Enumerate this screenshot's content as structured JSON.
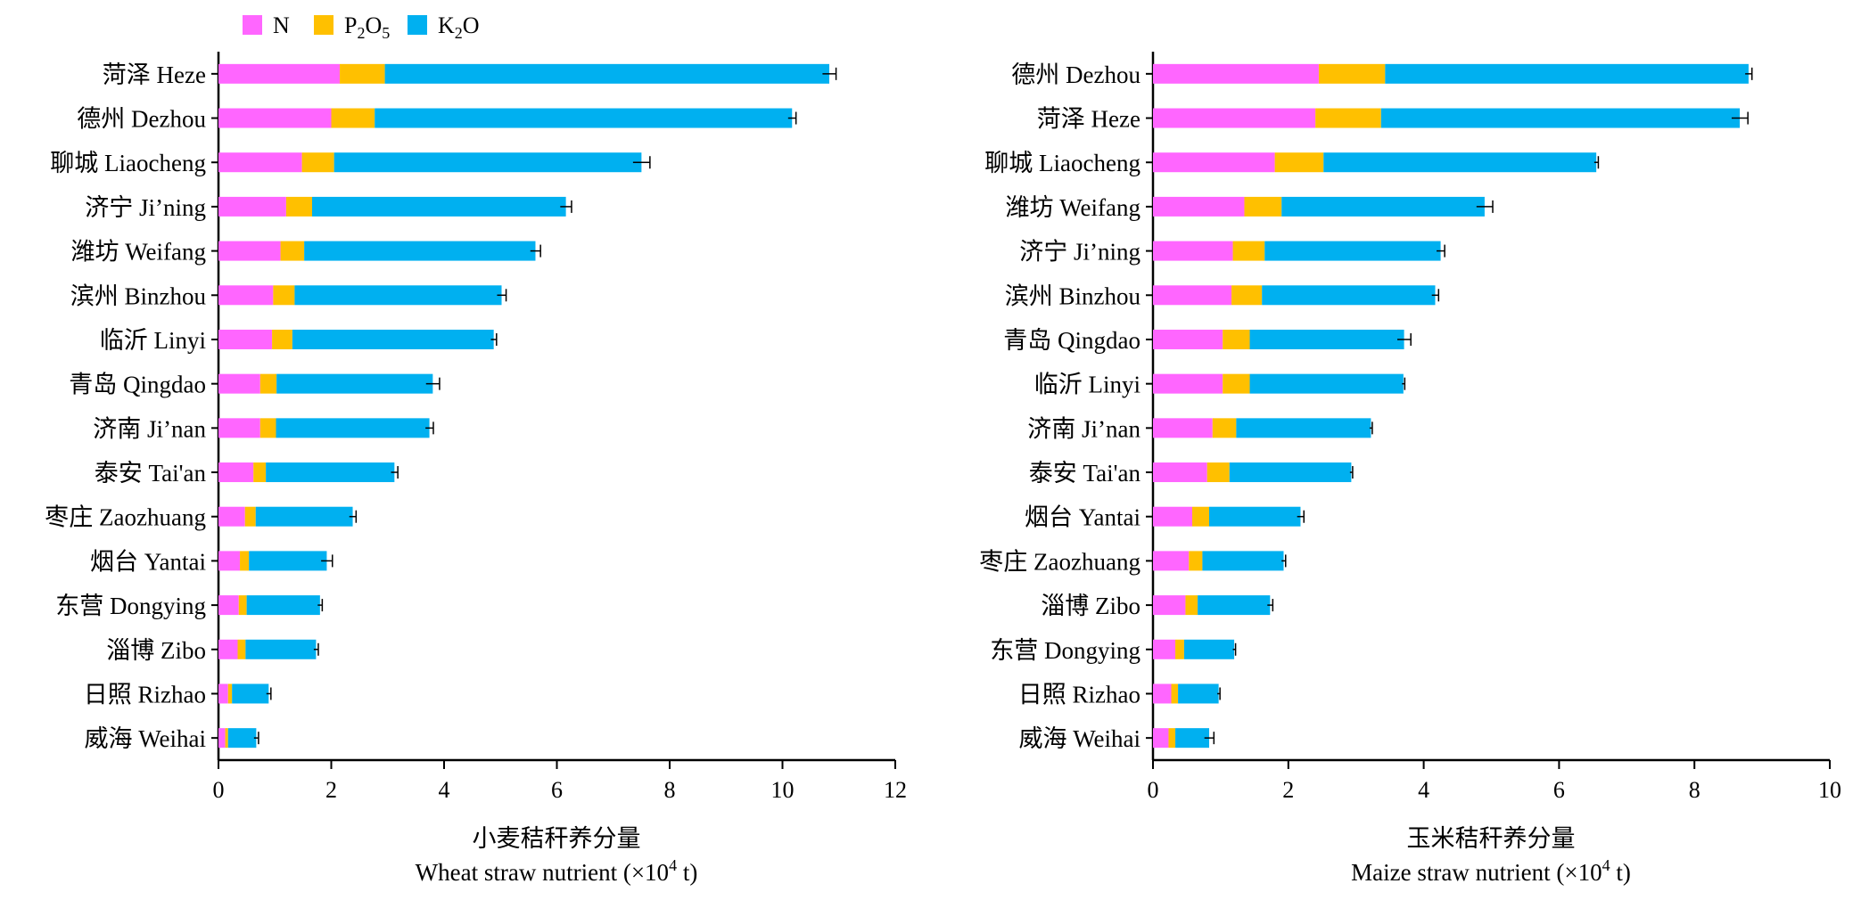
{
  "legend": {
    "items": [
      {
        "key": "N",
        "label": "N",
        "sub": "",
        "label2": "",
        "sub2": "",
        "color": "#ff66ff"
      },
      {
        "key": "P2O5",
        "label": "P",
        "sub": "2",
        "label2": "O",
        "sub2": "5",
        "color": "#ffc000"
      },
      {
        "key": "K2O",
        "label": "K",
        "sub": "2",
        "label2": "O",
        "sub2": "",
        "color": "#00b0f0"
      }
    ]
  },
  "chart_data": [
    {
      "type": "bar",
      "orientation": "horizontal",
      "stacked": true,
      "title": "",
      "xlabel_cn": "小麦秸秆养分量",
      "xlabel_en": "Wheat straw nutrient (×10",
      "xlabel_sup": "4",
      "xlabel_end": " t)",
      "xlim": [
        0,
        12
      ],
      "xticks": [
        0,
        2,
        4,
        6,
        8,
        10,
        12
      ],
      "categories": [
        "菏泽 Heze",
        "德州 Dezhou",
        "聊城 Liaocheng",
        "济宁 Ji’ning",
        "潍坊 Weifang",
        "滨州 Binzhou",
        "临沂 Linyi",
        "青岛 Qingdao",
        "济南 Ji’nan",
        "泰安 Tai'an",
        "枣庄 Zaozhuang",
        "烟台 Yantai",
        "东营 Dongying",
        "淄博 Zibo",
        "日照 Rizhao",
        "威海 Weihai"
      ],
      "series": [
        {
          "name": "N",
          "values": [
            2.15,
            2.0,
            1.48,
            1.2,
            1.1,
            0.97,
            0.95,
            0.74,
            0.74,
            0.62,
            0.47,
            0.38,
            0.36,
            0.34,
            0.17,
            0.12
          ]
        },
        {
          "name": "P2O5",
          "values": [
            0.8,
            0.77,
            0.57,
            0.46,
            0.42,
            0.38,
            0.36,
            0.29,
            0.28,
            0.22,
            0.19,
            0.16,
            0.14,
            0.14,
            0.07,
            0.05
          ]
        },
        {
          "name": "K2O",
          "values": [
            7.88,
            7.4,
            5.45,
            4.5,
            4.1,
            3.67,
            3.57,
            2.77,
            2.72,
            2.28,
            1.72,
            1.38,
            1.3,
            1.25,
            0.65,
            0.5
          ]
        }
      ],
      "error": [
        0.12,
        0.07,
        0.15,
        0.1,
        0.09,
        0.08,
        0.05,
        0.12,
        0.07,
        0.06,
        0.06,
        0.1,
        0.04,
        0.04,
        0.04,
        0.04
      ]
    },
    {
      "type": "bar",
      "orientation": "horizontal",
      "stacked": true,
      "title": "",
      "xlabel_cn": "玉米秸秆养分量",
      "xlabel_en": "Maize straw nutrient (×10",
      "xlabel_sup": "4",
      "xlabel_end": " t)",
      "xlim": [
        0,
        10
      ],
      "xticks": [
        0,
        2,
        4,
        6,
        8,
        10
      ],
      "categories": [
        "德州 Dezhou",
        "菏泽 Heze",
        "聊城 Liaocheng",
        "潍坊 Weifang",
        "济宁 Ji’ning",
        "滨州 Binzhou",
        "青岛 Qingdao",
        "临沂 Linyi",
        "济南 Ji’nan",
        "泰安 Tai'an",
        "烟台 Yantai",
        "枣庄 Zaozhuang",
        "淄博 Zibo",
        "东营 Dongying",
        "日照 Rizhao",
        "威海 Weihai"
      ],
      "series": [
        {
          "name": "N",
          "values": [
            2.45,
            2.4,
            1.8,
            1.35,
            1.18,
            1.16,
            1.03,
            1.03,
            0.88,
            0.8,
            0.58,
            0.53,
            0.48,
            0.33,
            0.27,
            0.23
          ]
        },
        {
          "name": "P2O5",
          "values": [
            0.98,
            0.97,
            0.72,
            0.55,
            0.47,
            0.45,
            0.4,
            0.4,
            0.35,
            0.33,
            0.25,
            0.2,
            0.18,
            0.13,
            0.1,
            0.1
          ]
        },
        {
          "name": "K2O",
          "values": [
            5.37,
            5.3,
            4.03,
            3.0,
            2.6,
            2.56,
            2.28,
            2.27,
            1.99,
            1.8,
            1.35,
            1.2,
            1.07,
            0.74,
            0.6,
            0.5
          ]
        }
      ],
      "error": [
        0.05,
        0.12,
        0.03,
        0.12,
        0.06,
        0.05,
        0.1,
        0.02,
        0.02,
        0.02,
        0.05,
        0.03,
        0.04,
        0.02,
        0.02,
        0.07
      ]
    }
  ]
}
